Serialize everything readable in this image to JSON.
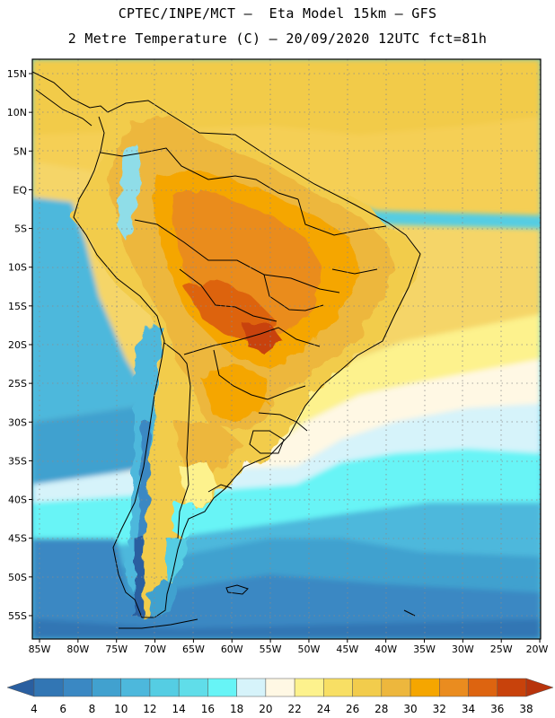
{
  "header": {
    "line1": "CPTEC/INPE/MCT –  Eta Model 15km – GFS",
    "line2": "2 Metre Temperature (C) – 20/09/2020 12UTC fct=81h"
  },
  "axes": {
    "lat_labels": [
      "15N",
      "10N",
      "5N",
      "EQ",
      "5S",
      "10S",
      "15S",
      "20S",
      "25S",
      "30S",
      "35S",
      "40S",
      "45S",
      "50S",
      "55S"
    ],
    "lon_labels": [
      "85W",
      "80W",
      "75W",
      "70W",
      "65W",
      "60W",
      "55W",
      "50W",
      "45W",
      "40W",
      "35W",
      "30W",
      "25W",
      "20W"
    ]
  },
  "colorbar": {
    "labels": [
      "4",
      "6",
      "8",
      "10",
      "12",
      "14",
      "16",
      "18",
      "20",
      "22",
      "24",
      "26",
      "28",
      "30",
      "32",
      "34",
      "36",
      "38"
    ],
    "colors": [
      "#2a5fa0",
      "#3276b4",
      "#3a88c3",
      "#41a1cf",
      "#4db8dc",
      "#55cde3",
      "#60dde9",
      "#67f4f6",
      "#d6f3fa",
      "#fff8e4",
      "#fdf28d",
      "#f8df64",
      "#f2cc4c",
      "#edb73d",
      "#f5a600",
      "#ea8c1f",
      "#dd6410",
      "#c8420b",
      "#b8340c"
    ]
  },
  "map": {
    "variable": "2 Metre Temperature",
    "units": "C"
  }
}
